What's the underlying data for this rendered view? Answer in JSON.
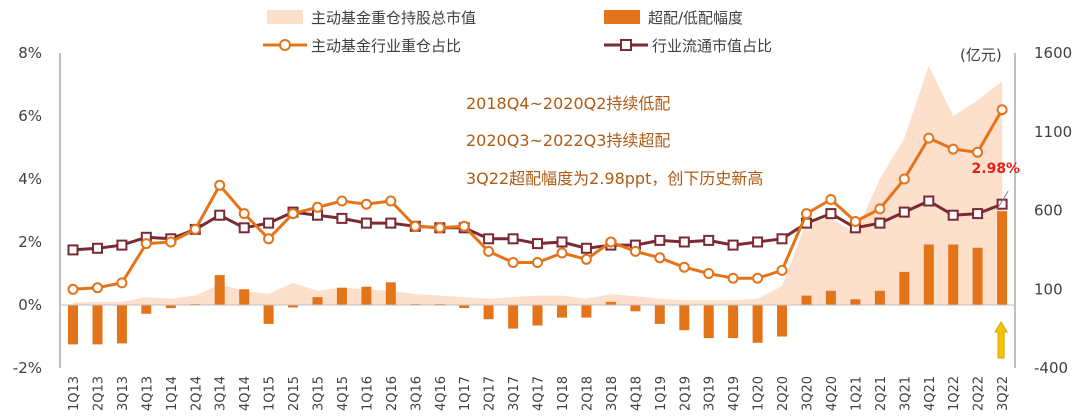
{
  "chart_data": {
    "type": "bar+line+area",
    "categories": [
      "1Q13",
      "2Q13",
      "3Q13",
      "4Q13",
      "1Q14",
      "2Q14",
      "3Q14",
      "4Q14",
      "1Q15",
      "2Q15",
      "3Q15",
      "4Q15",
      "1Q16",
      "2Q16",
      "3Q16",
      "4Q16",
      "1Q17",
      "2Q17",
      "3Q17",
      "4Q17",
      "1Q18",
      "2Q18",
      "3Q18",
      "4Q18",
      "1Q19",
      "2Q19",
      "3Q19",
      "4Q19",
      "1Q20",
      "2Q20",
      "3Q20",
      "4Q20",
      "1Q21",
      "2Q21",
      "3Q21",
      "4Q21",
      "1Q22",
      "2Q22",
      "3Q22"
    ],
    "x_tick_labels": [
      "1Q13",
      "2Q13",
      "3Q13",
      "4Q13",
      "1Q14",
      "2Q14",
      "3Q14",
      "4Q14",
      "1Q15",
      "2Q15",
      "3Q15",
      "4Q15",
      "1Q16",
      "2Q16",
      "3Q16",
      "4Q16",
      "1Q17",
      "2Q17",
      "3Q17",
      "4Q17",
      "1Q18",
      "2Q18",
      "3Q18",
      "4Q18",
      "1Q19",
      "2Q19",
      "3Q19",
      "4Q19",
      "1Q20",
      "2Q20",
      "3Q20",
      "4Q20",
      "1Q21",
      "2Q21",
      "3Q21",
      "4Q21",
      "1Q22",
      "2Q22",
      "3Q22"
    ],
    "left_axis": {
      "ylim": [
        -2,
        8
      ],
      "ticks": [
        -2,
        0,
        2,
        4,
        6,
        8
      ],
      "tick_labels": [
        "-2%",
        "0%",
        "2%",
        "4%",
        "6%",
        "8%"
      ]
    },
    "right_axis": {
      "ylim": [
        -400,
        1600
      ],
      "ticks": [
        -400,
        100,
        600,
        1100,
        1600
      ],
      "tick_labels": [
        "-400",
        "100",
        "600",
        "1100",
        "1600"
      ],
      "unit": "(亿元)"
    },
    "series": [
      {
        "name": "主动基金重仓持股总市值",
        "type": "area",
        "axis": "right",
        "color": "#fde0cc",
        "values": [
          15,
          20,
          20,
          50,
          40,
          60,
          130,
          90,
          70,
          140,
          90,
          110,
          100,
          90,
          70,
          60,
          50,
          40,
          50,
          60,
          60,
          40,
          70,
          55,
          40,
          30,
          30,
          30,
          40,
          120,
          530,
          550,
          460,
          800,
          1060,
          1520,
          1200,
          1300,
          1420
        ]
      },
      {
        "name": "超配/低配幅度",
        "type": "bar",
        "axis": "left",
        "color": "#e4741a",
        "values": [
          -1.25,
          -1.25,
          -1.22,
          -0.28,
          -0.1,
          0.03,
          0.95,
          0.5,
          -0.6,
          -0.08,
          0.25,
          0.55,
          0.58,
          0.72,
          0.03,
          0.03,
          -0.1,
          -0.45,
          -0.75,
          -0.65,
          -0.4,
          -0.4,
          0.1,
          -0.2,
          -0.6,
          -0.8,
          -1.05,
          -1.05,
          -1.2,
          -1.0,
          0.3,
          0.45,
          0.18,
          0.45,
          1.05,
          1.92,
          1.92,
          1.82,
          2.98
        ]
      },
      {
        "name": "主动基金行业重仓占比",
        "type": "line",
        "axis": "left",
        "color": "#e4741a",
        "values": [
          0.5,
          0.55,
          0.7,
          1.95,
          2.0,
          2.4,
          3.8,
          2.9,
          2.1,
          2.9,
          3.1,
          3.3,
          3.2,
          3.3,
          2.5,
          2.45,
          2.5,
          1.7,
          1.35,
          1.35,
          1.65,
          1.45,
          2.0,
          1.7,
          1.5,
          1.2,
          1.0,
          0.85,
          0.85,
          1.1,
          2.9,
          3.35,
          2.65,
          3.05,
          4.0,
          5.3,
          4.95,
          4.85,
          6.2
        ]
      },
      {
        "name": "行业流通市值占比",
        "type": "line",
        "axis": "left",
        "color": "#7b2a33",
        "values": [
          1.75,
          1.8,
          1.9,
          2.15,
          2.1,
          2.4,
          2.85,
          2.45,
          2.6,
          2.95,
          2.85,
          2.75,
          2.6,
          2.6,
          2.5,
          2.45,
          2.45,
          2.1,
          2.1,
          1.95,
          2.0,
          1.8,
          1.9,
          1.9,
          2.05,
          2.0,
          2.05,
          1.9,
          2.0,
          2.1,
          2.6,
          2.9,
          2.45,
          2.6,
          2.95,
          3.3,
          2.85,
          2.9,
          3.2
        ]
      }
    ],
    "legend": {
      "placement": "top",
      "items": [
        {
          "label": "主动基金重仓持股总市值",
          "marker": "area"
        },
        {
          "label": "超配/低配幅度",
          "marker": "bar"
        },
        {
          "label": "主动基金行业重仓占比",
          "marker": "line-circle"
        },
        {
          "label": "行业流通市值占比",
          "marker": "line-square"
        }
      ]
    },
    "annotations": [
      "2018Q4~2020Q2持续低配",
      "2020Q3~2022Q3持续超配",
      "3Q22超配幅度为2.98ppt，创下历史新高"
    ],
    "callout": "2.98%",
    "grid": false,
    "colors": {
      "accent": "#e4741a",
      "line2": "#7b2a33",
      "area": "#fde0cc",
      "callout": "#e8201a",
      "arrow": "#f5c400",
      "annotation": "#b05a14"
    }
  }
}
